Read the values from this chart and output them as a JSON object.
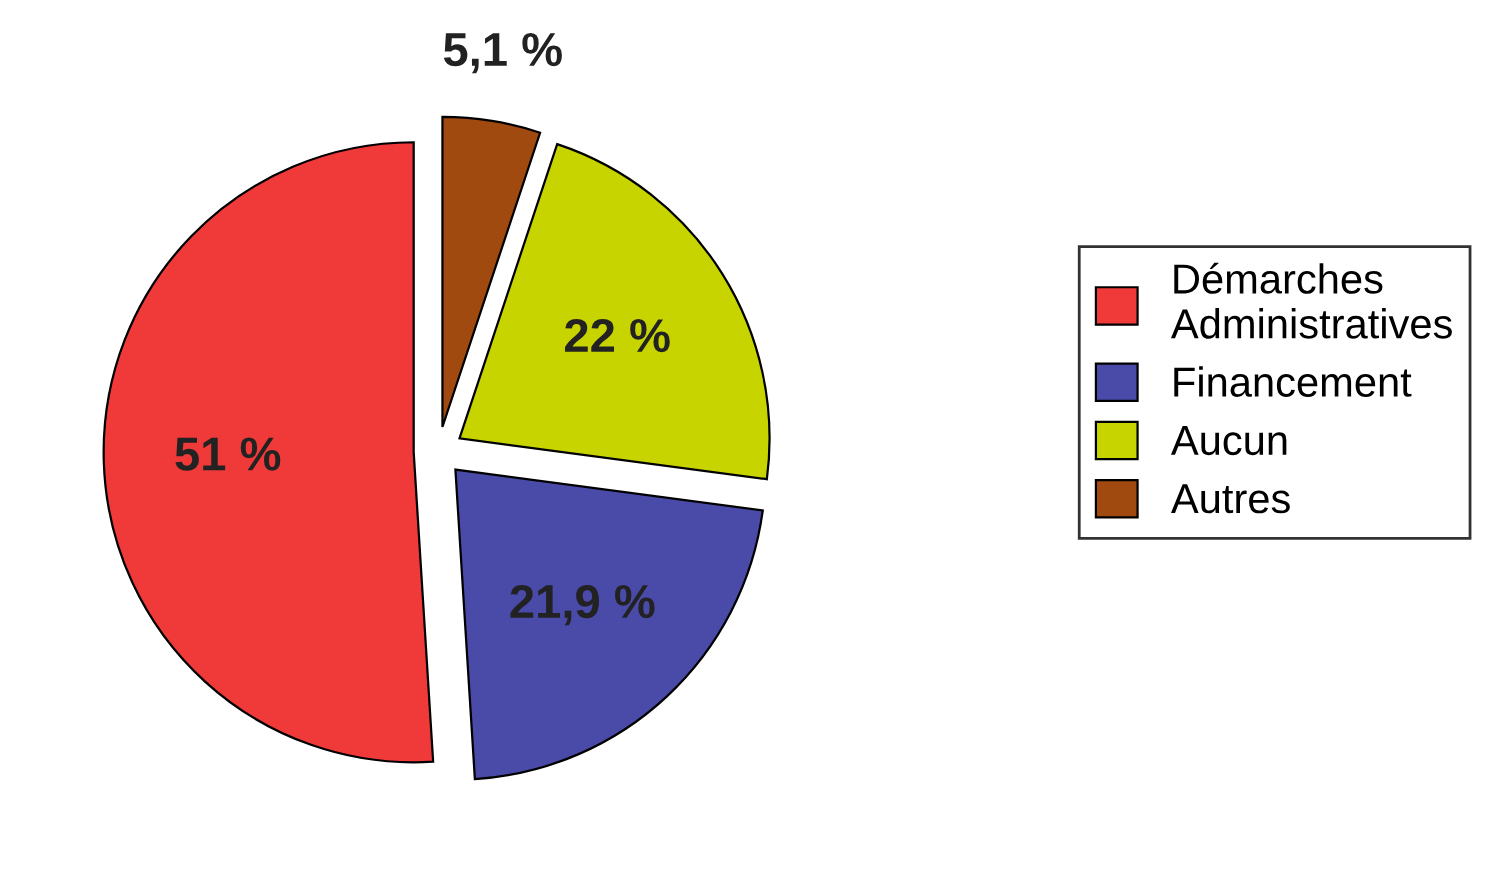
{
  "chart_data": {
    "type": "pie",
    "categories": [
      "Démarches\nAdministratives",
      "Financement",
      "Aucun",
      "Autres"
    ],
    "values": [
      51,
      21.9,
      22,
      5.1
    ],
    "value_labels": [
      "51 %",
      "21,9 %",
      "22 %",
      "5,1 %"
    ],
    "colors": [
      "#f03a3a",
      "#4a4aa8",
      "#c8d400",
      "#a04a10"
    ],
    "legend": "right"
  }
}
